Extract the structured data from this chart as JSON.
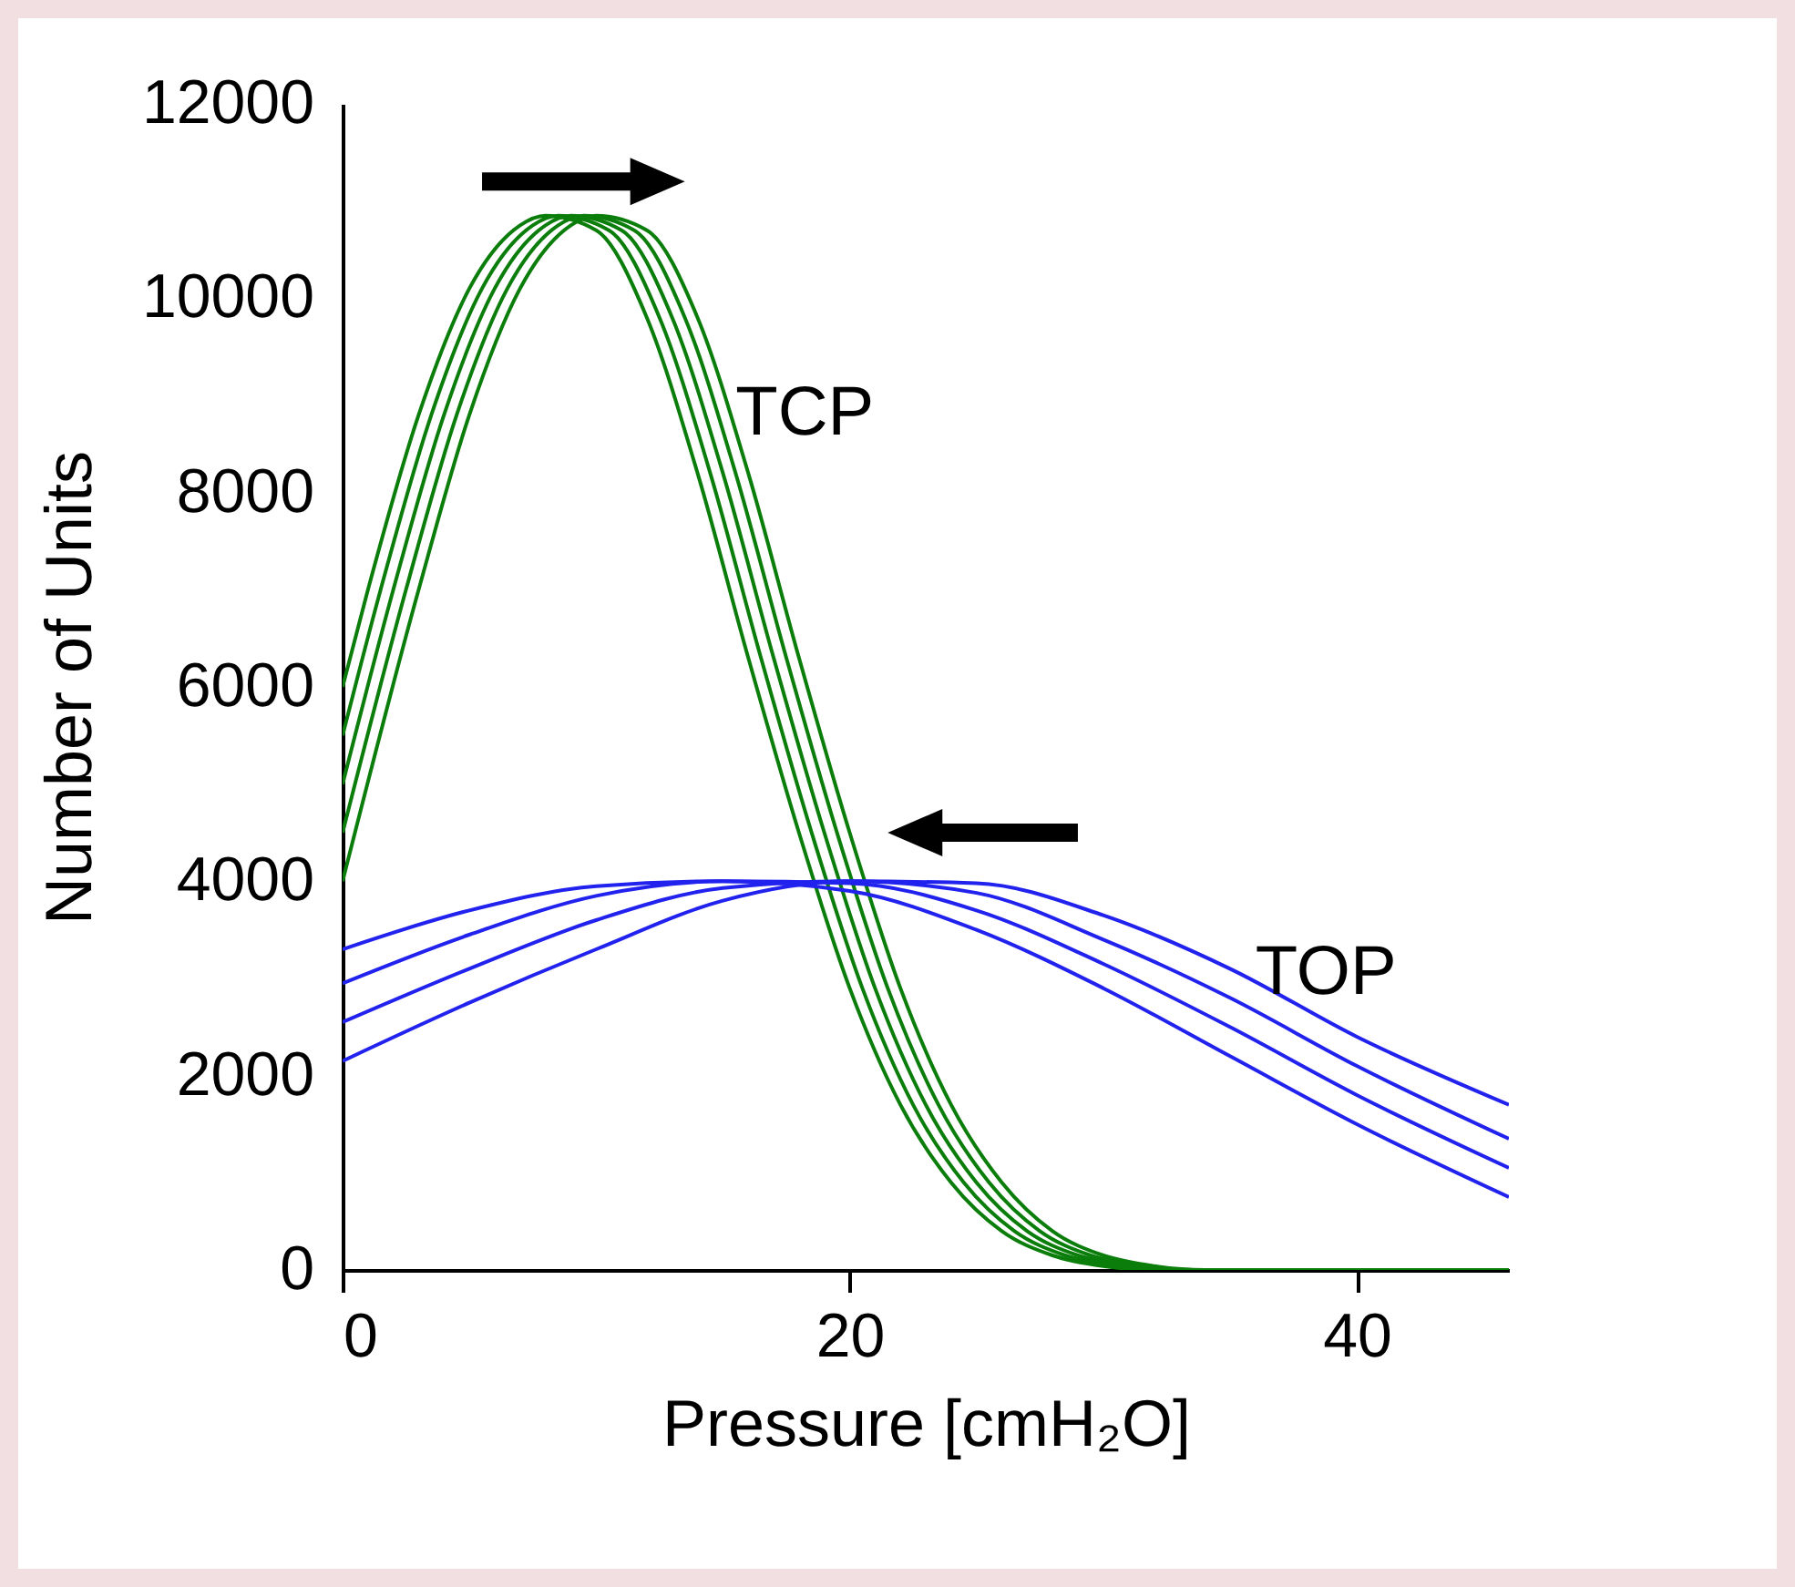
{
  "chart_data": {
    "type": "line",
    "xlabel": "Pressure  [cmH₂O]",
    "ylabel": "Number of Units",
    "xlim": [
      0,
      46
    ],
    "xticks": [
      0,
      20,
      40
    ],
    "ylim": [
      0,
      12000
    ],
    "yticks": [
      0,
      2000,
      4000,
      6000,
      8000,
      10000,
      12000
    ],
    "grid": false,
    "series": [
      {
        "color": "#0b7d0b",
        "x": [
          0,
          1,
          3,
          5,
          7,
          8,
          10,
          12,
          14,
          16,
          18,
          20,
          22,
          24,
          26,
          28,
          30,
          32,
          36,
          46
        ],
        "values": [
          6000,
          7000,
          8800,
          10100,
          10750,
          10850,
          10700,
          9800,
          8200,
          6300,
          4500,
          2900,
          1700,
          900,
          400,
          150,
          40,
          0,
          0,
          0
        ]
      },
      {
        "color": "#0b7d0b",
        "x": [
          0,
          1.5,
          3.5,
          5.5,
          7.5,
          8.5,
          10.5,
          12.5,
          14.5,
          16.5,
          18.5,
          20.5,
          22.5,
          24.5,
          26.5,
          28.5,
          30.5,
          32.5,
          36.5,
          46
        ],
        "values": [
          5500,
          7000,
          8800,
          10100,
          10750,
          10850,
          10700,
          9800,
          8200,
          6300,
          4500,
          2900,
          1700,
          900,
          400,
          150,
          40,
          0,
          0,
          0
        ]
      },
      {
        "color": "#0b7d0b",
        "x": [
          0,
          2,
          4,
          6,
          8,
          9,
          11,
          13,
          15,
          17,
          19,
          21,
          23,
          25,
          27,
          29,
          31,
          33,
          37,
          46
        ],
        "values": [
          5000,
          7000,
          8800,
          10100,
          10750,
          10850,
          10700,
          9800,
          8200,
          6300,
          4500,
          2900,
          1700,
          900,
          400,
          150,
          40,
          0,
          0,
          0
        ]
      },
      {
        "color": "#0b7d0b",
        "x": [
          0,
          2.5,
          4.5,
          6.5,
          8.5,
          9.5,
          11.5,
          13.5,
          15.5,
          17.5,
          19.5,
          21.5,
          23.5,
          25.5,
          27.5,
          29.5,
          31.5,
          33.5,
          37.5,
          46
        ],
        "values": [
          4500,
          7000,
          8800,
          10100,
          10750,
          10850,
          10700,
          9800,
          8200,
          6300,
          4500,
          2900,
          1700,
          900,
          400,
          150,
          40,
          0,
          0,
          0
        ]
      },
      {
        "color": "#0b7d0b",
        "x": [
          0,
          3,
          5,
          7,
          9,
          10,
          12,
          14,
          16,
          18,
          20,
          22,
          24,
          26,
          28,
          30,
          32,
          34,
          38,
          46
        ],
        "values": [
          4000,
          7000,
          8800,
          10100,
          10750,
          10850,
          10700,
          9800,
          8200,
          6300,
          4500,
          2900,
          1700,
          900,
          400,
          150,
          40,
          0,
          0,
          0
        ]
      },
      {
        "color": "#2222ee",
        "x": [
          0,
          5,
          10,
          15,
          20,
          25,
          30,
          35,
          40,
          46
        ],
        "values": [
          3300,
          3700,
          3950,
          4000,
          3900,
          3500,
          2900,
          2200,
          1500,
          750
        ]
      },
      {
        "color": "#2222ee",
        "x": [
          0,
          5,
          10,
          15,
          20,
          25,
          30,
          35,
          40,
          46
        ],
        "values": [
          2950,
          3450,
          3850,
          4000,
          3980,
          3700,
          3150,
          2500,
          1800,
          1050
        ]
      },
      {
        "color": "#2222ee",
        "x": [
          0,
          5,
          10,
          15,
          20,
          25,
          30,
          35,
          40,
          46
        ],
        "values": [
          2550,
          3100,
          3600,
          3930,
          4000,
          3880,
          3400,
          2800,
          2100,
          1350
        ]
      },
      {
        "color": "#2222ee",
        "x": [
          0,
          5,
          10,
          15,
          20,
          25,
          30,
          35,
          40,
          46
        ],
        "values": [
          2150,
          2750,
          3300,
          3800,
          4000,
          3980,
          3650,
          3100,
          2400,
          1700
        ]
      }
    ],
    "annotations": [
      {
        "text": "TCP",
        "x": 15.5,
        "y": 8800
      },
      {
        "text": "TOP",
        "x": 36,
        "y": 3050
      }
    ]
  }
}
